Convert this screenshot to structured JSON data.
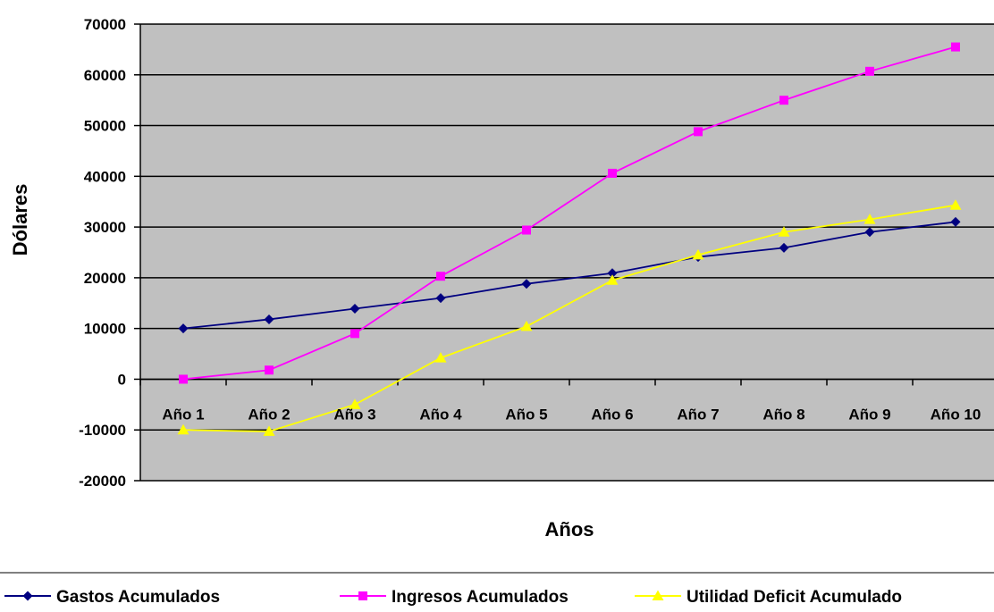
{
  "chart_data": {
    "type": "line",
    "title": "",
    "xlabel": "Años",
    "ylabel": "Dólares",
    "categories": [
      "Año 1",
      "Año 2",
      "Año 3",
      "Año 4",
      "Año 5",
      "Año 6",
      "Año 7",
      "Año 8",
      "Año 9",
      "Año 10"
    ],
    "ylim": [
      -20000,
      70000
    ],
    "yticks": [
      70000,
      60000,
      50000,
      40000,
      30000,
      20000,
      10000,
      0,
      -10000,
      -20000
    ],
    "grid": true,
    "legend_position": "bottom",
    "plot_background": "#c0c0c0",
    "series": [
      {
        "name": "Gastos Acumulados",
        "color": "#000080",
        "marker": "diamond",
        "values": [
          10000,
          11800,
          13900,
          16000,
          18800,
          20900,
          24100,
          25900,
          29000,
          31000
        ]
      },
      {
        "name": "Ingresos Acumulados",
        "color": "#ff00ff",
        "marker": "square",
        "values": [
          0,
          1800,
          9000,
          20300,
          29400,
          40600,
          48800,
          55000,
          60700,
          65500
        ]
      },
      {
        "name": "Utilidad Deficit Acumulado",
        "color": "#ffff00",
        "marker": "triangle",
        "values": [
          -10000,
          -10300,
          -5000,
          4200,
          10400,
          19500,
          24500,
          29000,
          31500,
          34300
        ]
      }
    ]
  }
}
